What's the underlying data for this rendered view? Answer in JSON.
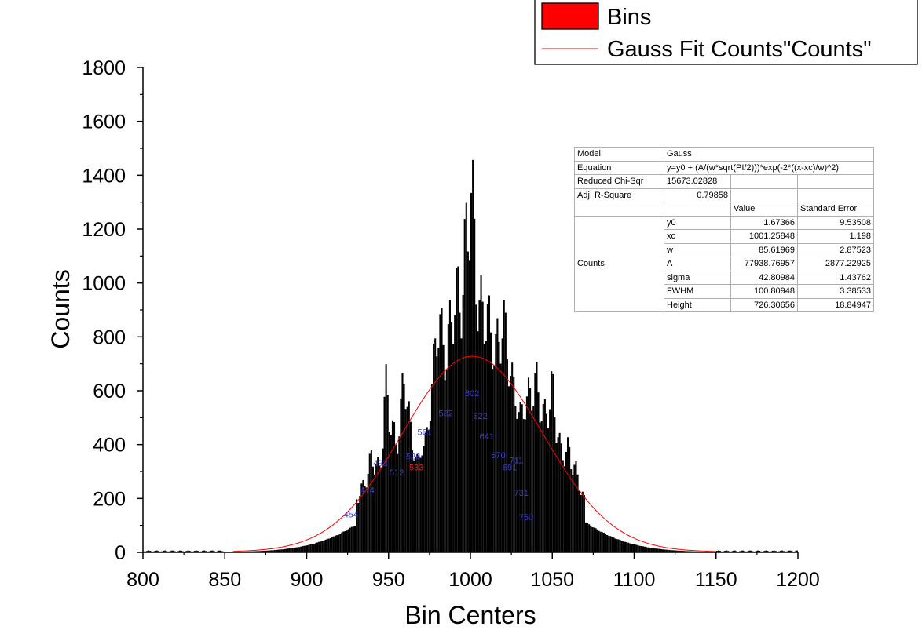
{
  "chart_data": {
    "type": "bar",
    "xlabel": "Bin Centers",
    "ylabel": "Counts",
    "xlim": [
      800,
      1200
    ],
    "ylim": [
      0,
      1800
    ],
    "x_ticks": [
      800,
      850,
      900,
      950,
      1000,
      1050,
      1100,
      1150,
      1200
    ],
    "y_ticks": [
      0,
      200,
      400,
      600,
      800,
      1000,
      1200,
      1400,
      1600,
      1800
    ],
    "legend": {
      "position": "top-right",
      "entries": [
        {
          "label": "Bins",
          "kind": "bar",
          "color": "#ff0000"
        },
        {
          "label": "Gauss Fit Counts\"Counts\"",
          "kind": "line",
          "color": "#ff0000"
        }
      ]
    },
    "series": [
      {
        "name": "Bins",
        "kind": "histogram",
        "color": "#000000",
        "x": [
          930,
          935,
          940,
          945,
          948,
          955,
          960,
          965,
          970,
          975,
          980,
          985,
          990,
          995,
          1000,
          1005,
          1010,
          1015,
          1020,
          1025,
          1030,
          1035,
          1040,
          1045,
          1050,
          1055,
          1060,
          1065,
          1070
        ],
        "y": [
          220,
          280,
          410,
          330,
          720,
          420,
          780,
          370,
          360,
          530,
          1020,
          800,
          1090,
          1090,
          1645,
          1040,
          1010,
          830,
          990,
          730,
          550,
          640,
          725,
          560,
          710,
          420,
          430,
          330,
          200
        ]
      },
      {
        "name": "Gauss Fit Counts\"Counts\"",
        "kind": "line",
        "color": "#ff0000",
        "model": "gauss",
        "params": {
          "y0": 1.67366,
          "xc": 1001.25848,
          "w": 85.61969,
          "A": 77938.76957
        }
      }
    ],
    "annotations": [
      {
        "text": "454",
        "x": 927,
        "y": 130,
        "color": "#3b3bd6"
      },
      {
        "text": "474",
        "x": 937,
        "y": 220,
        "color": "#3b3bd6"
      },
      {
        "text": "493",
        "x": 945,
        "y": 320,
        "color": "#3b3bd6"
      },
      {
        "text": "512",
        "x": 955,
        "y": 285,
        "color": "#3b3bd6"
      },
      {
        "text": "526",
        "x": 965,
        "y": 345,
        "color": "#3b3bd6"
      },
      {
        "text": "533",
        "x": 967,
        "y": 305,
        "color": "#e02020"
      },
      {
        "text": "561",
        "x": 972,
        "y": 435,
        "color": "#3b3bd6"
      },
      {
        "text": "582",
        "x": 985,
        "y": 505,
        "color": "#3b3bd6"
      },
      {
        "text": "602",
        "x": 1001,
        "y": 580,
        "color": "#3b3bd6"
      },
      {
        "text": "622",
        "x": 1006,
        "y": 495,
        "color": "#3b3bd6"
      },
      {
        "text": "641",
        "x": 1010,
        "y": 420,
        "color": "#3b3bd6"
      },
      {
        "text": "670",
        "x": 1017,
        "y": 350,
        "color": "#3b3bd6"
      },
      {
        "text": "691",
        "x": 1024,
        "y": 305,
        "color": "#3b3bd6"
      },
      {
        "text": "711",
        "x": 1028,
        "y": 330,
        "color": "#3b3bd6"
      },
      {
        "text": "731",
        "x": 1031,
        "y": 210,
        "color": "#3b3bd6"
      },
      {
        "text": "750",
        "x": 1034,
        "y": 120,
        "color": "#3b3bd6"
      }
    ]
  },
  "fit_table": {
    "model_label": "Model",
    "model_value": "Gauss",
    "equation_label": "Equation",
    "equation_value": "y=y0 + (A/(w*sqrt(PI/2)))*exp(-2*((x-xc)/w)^2)",
    "chisq_label": "Reduced Chi-Sqr",
    "chisq_value": "15673.02828",
    "r2_label": "Adj. R-Square",
    "r2_value": "0.79858",
    "col_value": "Value",
    "col_error": "Standard Error",
    "group_label": "Counts",
    "params": [
      {
        "name": "y0",
        "value": "1.67366",
        "error": "9.53508"
      },
      {
        "name": "xc",
        "value": "1001.25848",
        "error": "1.198"
      },
      {
        "name": "w",
        "value": "85.61969",
        "error": "2.87523"
      },
      {
        "name": "A",
        "value": "77938.76957",
        "error": "2877.22925"
      },
      {
        "name": "sigma",
        "value": "42.80984",
        "error": "1.43762"
      },
      {
        "name": "FWHM",
        "value": "100.80948",
        "error": "3.38533"
      },
      {
        "name": "Height",
        "value": "726.30656",
        "error": "18.84947"
      }
    ]
  }
}
